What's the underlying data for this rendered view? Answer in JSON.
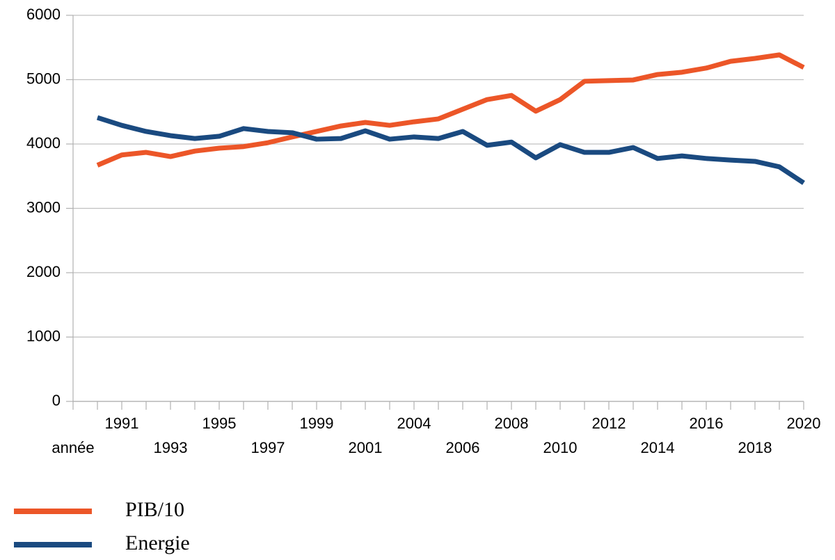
{
  "chart_data": {
    "type": "line",
    "categories": [
      "année",
      null,
      "1991",
      null,
      "1993",
      null,
      "1995",
      null,
      "1997",
      null,
      "1999",
      null,
      "2001",
      null,
      "2004",
      null,
      "2006",
      null,
      "2008",
      null,
      "2010",
      null,
      "2012",
      null,
      "2014",
      null,
      "2016",
      null,
      "2018",
      null,
      "2020"
    ],
    "series": [
      {
        "name": "PIB/10",
        "color": "#ec5628",
        "values": [
          null,
          3670,
          3830,
          3870,
          3805,
          3890,
          3935,
          3960,
          4020,
          4110,
          4195,
          4280,
          4335,
          4290,
          4345,
          4390,
          4540,
          4690,
          4755,
          4510,
          4690,
          4975,
          4985,
          4995,
          5080,
          5115,
          5180,
          5285,
          5330,
          5385,
          5190
        ]
      },
      {
        "name": "Energie",
        "color": "#1a4a80",
        "values": [
          null,
          4410,
          4290,
          4195,
          4130,
          4085,
          4120,
          4240,
          4195,
          4175,
          4075,
          4085,
          4205,
          4075,
          4110,
          4085,
          4195,
          3980,
          4030,
          3785,
          3990,
          3870,
          3870,
          3945,
          3775,
          3815,
          3775,
          3750,
          3730,
          3645,
          3395
        ]
      }
    ],
    "ylim": [
      0,
      6000
    ],
    "yticks": [
      0,
      1000,
      2000,
      3000,
      4000,
      5000,
      6000
    ],
    "grid": true,
    "legend": "bottom-left"
  }
}
